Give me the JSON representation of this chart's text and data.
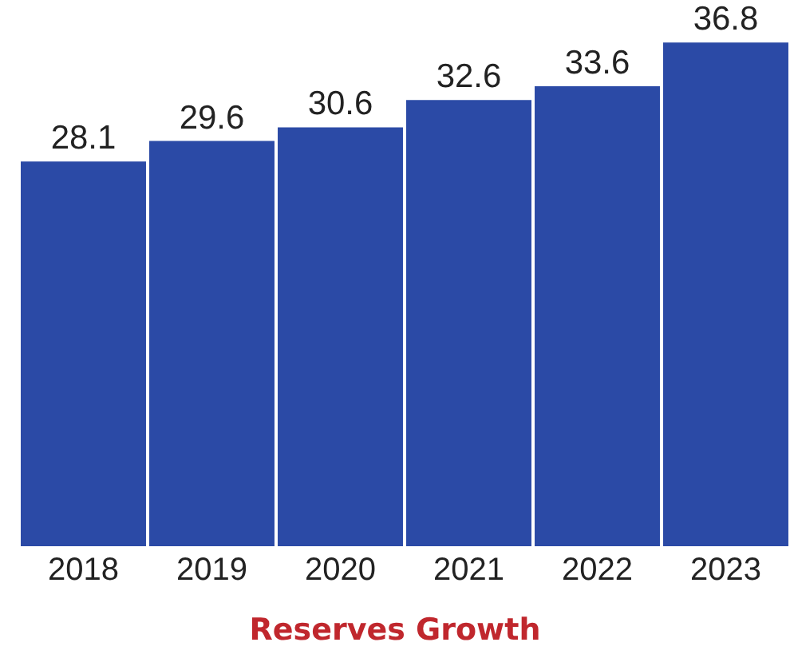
{
  "chart_data": {
    "type": "bar",
    "title": "Reserves Growth",
    "categories": [
      "2018",
      "2019",
      "2020",
      "2021",
      "2022",
      "2023"
    ],
    "values": [
      28.1,
      29.6,
      30.6,
      32.6,
      33.6,
      36.8
    ],
    "color": "#2b4aa6",
    "data_labels": true,
    "tick_labels": "x",
    "grid": false
  }
}
